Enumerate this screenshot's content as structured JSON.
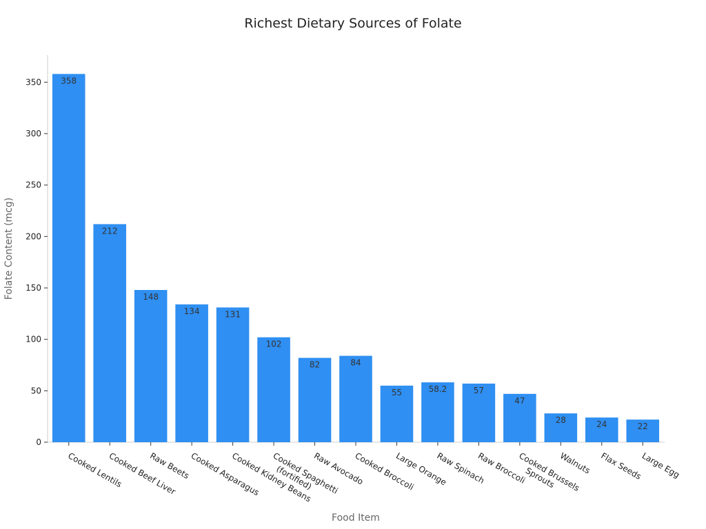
{
  "chart_data": {
    "type": "bar",
    "title": "Richest Dietary Sources of Folate",
    "x_label": "Food Item",
    "y_label": "Folate Content (mcg)",
    "categories": [
      "Cooked Lentils",
      "Cooked Beef Liver",
      "Raw Beets",
      "Cooked Asparagus",
      "Cooked Kidney Beans",
      "Cooked Spaghetti (fortified)",
      "Raw Avocado",
      "Cooked Broccoli",
      "Large Orange",
      "Raw Spinach",
      "Raw Broccoli",
      "Cooked Brussels Sprouts",
      "Walnuts",
      "Flax Seeds",
      "Large Egg"
    ],
    "values": [
      358,
      212,
      148,
      134,
      131,
      102,
      82,
      84,
      55,
      58.2,
      57,
      47,
      28,
      24,
      22
    ],
    "color": "#2f8ff2",
    "ylim": [
      0,
      375
    ],
    "yticks": [
      0,
      50,
      100,
      150,
      200,
      250,
      300,
      350
    ],
    "grid": false
  }
}
